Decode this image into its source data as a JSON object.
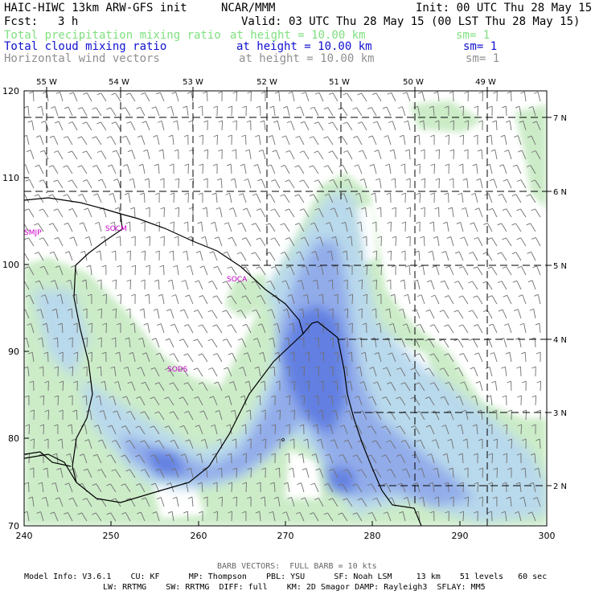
{
  "header": {
    "title": "HAIC-HIWC 13km ARW-GFS init",
    "center": "NCAR/MMM",
    "init": "Init: 00 UTC Thu 28 May 15",
    "fcst_label": "Fcst:",
    "fcst_value": "3 h",
    "valid": "Valid: 03 UTC Thu 28 May 15 (00 LST Thu 28 May 15)"
  },
  "fields": [
    {
      "name": "Total precipitation mixing ratio",
      "height": "at height = 10.00 km",
      "sm": "sm= 1",
      "color": "#7fff7f"
    },
    {
      "name": "Total cloud mixing ratio",
      "height": "at height = 10.00 km",
      "sm": "sm= 1",
      "color": "#0000e0"
    },
    {
      "name": "Horizontal wind vectors",
      "height": "at height = 10.00 km",
      "sm": "sm= 1",
      "color": "#888888"
    }
  ],
  "axes": {
    "top_lon_labels": [
      "55 W",
      "54 W",
      "53 W",
      "52 W",
      "51 W",
      "50 W",
      "49 W"
    ],
    "right_lat_labels": [
      "7 N",
      "6 N",
      "5 N",
      "4 N",
      "3 N",
      "2 N"
    ],
    "left_y_labels": [
      "120",
      "110",
      "100",
      "90",
      "80",
      "70"
    ],
    "bottom_x_labels": [
      "240",
      "250",
      "260",
      "270",
      "280",
      "290",
      "300"
    ]
  },
  "stations": [
    "SMJP",
    "SOCM",
    "SOCA",
    "SODS"
  ],
  "colors": {
    "cloud_light": "#ccecc8",
    "cloud_mid": "#b8d8ee",
    "cloud_core": "#5a78e0",
    "coast": "#000000",
    "barb": "#707070",
    "station": "#cc00cc"
  },
  "footer": {
    "barb_note": "BARB VECTORS:  FULL BARB = 10 kts",
    "model_line1": "Model Info: V3.6.1    CU: KF      MP: Thompson    PBL: YSU      SF: Noah LSM     13 km    51 levels   60 sec",
    "model_line2": "LW: RRTMG    SW: RRTMG  DIFF: full    KM: 2D Smagor DAMP: Rayleigh3  SFLAY: MM5"
  }
}
